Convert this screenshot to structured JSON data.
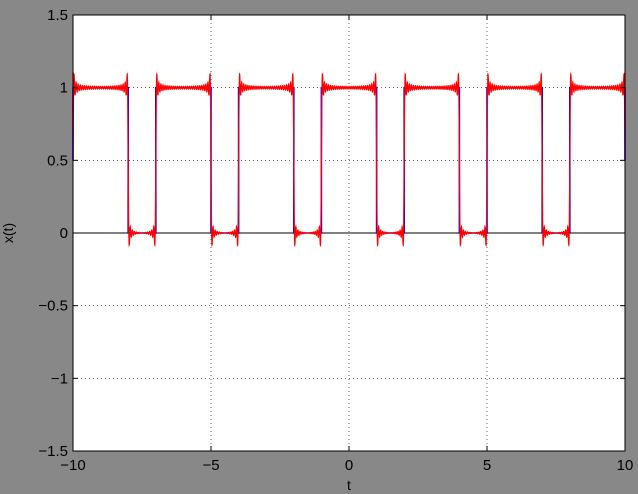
{
  "chart_data": {
    "type": "line",
    "title": "",
    "xlabel": "t",
    "ylabel": "x(t)",
    "xlim": [
      -10,
      10
    ],
    "ylim": [
      -1.5,
      1.5
    ],
    "xticks": [
      -10,
      -5,
      0,
      5,
      10
    ],
    "xtick_labels": [
      "−10",
      "−5",
      "0",
      "5",
      "10"
    ],
    "yticks": [
      -1.5,
      -1,
      -0.5,
      0,
      0.5,
      1,
      1.5
    ],
    "ytick_labels": [
      "−1.5",
      "−1",
      "−0.5",
      "0",
      "0.5",
      "1",
      "1.5"
    ],
    "grid": true,
    "grid_style": "dotted",
    "legend": "none",
    "series": [
      {
        "color": "#0000ff",
        "kind": "ideal periodic square wave",
        "period": 3,
        "high_value": 1,
        "low_value": 0,
        "high_intervals": [
          [
            -10,
            -8
          ],
          [
            -7,
            -5
          ],
          [
            -4,
            -2
          ],
          [
            -1,
            1
          ],
          [
            2,
            4
          ],
          [
            5,
            7
          ],
          [
            8,
            10
          ]
        ],
        "x": [
          -10,
          -10,
          -8,
          -8,
          -7,
          -7,
          -5,
          -5,
          -4,
          -4,
          -2,
          -2,
          -1,
          -1,
          1,
          1,
          2,
          2,
          4,
          4,
          5,
          5,
          7,
          7,
          8,
          8,
          10,
          10
        ],
        "y": [
          0.5,
          1,
          1,
          0,
          0,
          1,
          1,
          0,
          0,
          1,
          1,
          0,
          0,
          1,
          1,
          0,
          0,
          1,
          1,
          0,
          0,
          1,
          1,
          0,
          0,
          1,
          1,
          0.5
        ]
      },
      {
        "color": "#ff0000",
        "kind": "truncated Fourier series approximation (Gibbs ringing at edges)",
        "period": 3,
        "overshoot_max": 1.09,
        "undershoot_min": -0.09,
        "edges": [
          -10,
          -8,
          -7,
          -5,
          -4,
          -2,
          -1,
          1,
          2,
          4,
          5,
          7,
          8,
          10
        ]
      }
    ],
    "axis_line_y": 0
  }
}
